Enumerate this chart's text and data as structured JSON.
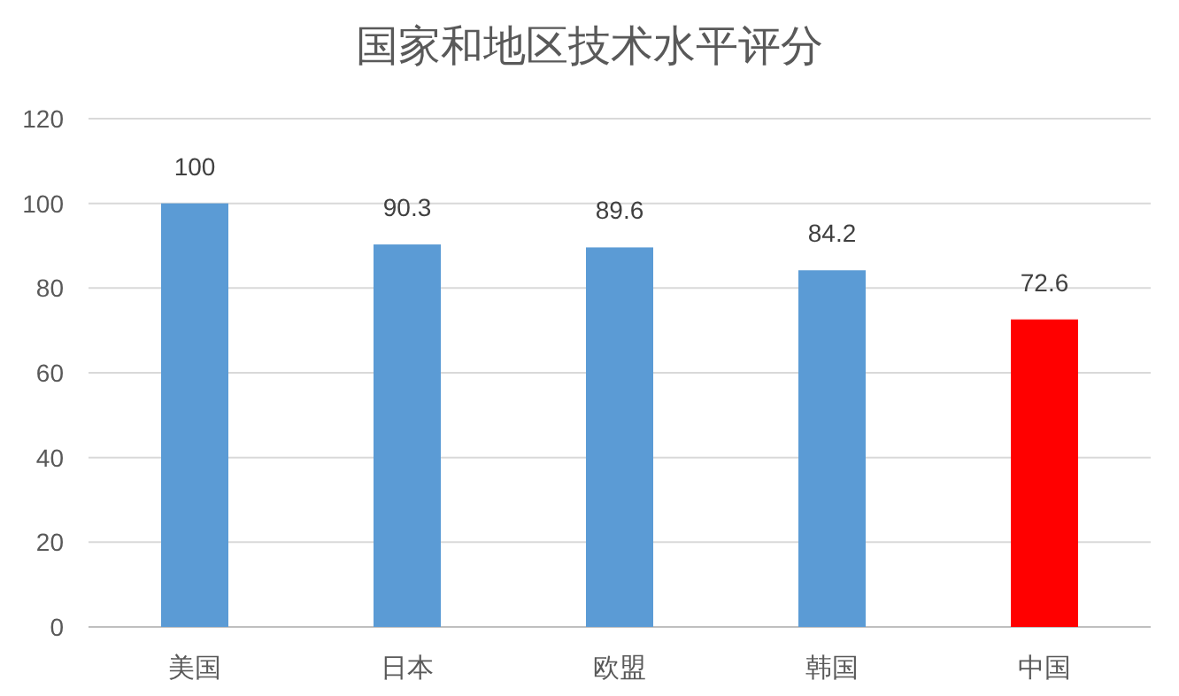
{
  "chart_data": {
    "type": "bar",
    "title": "国家和地区技术水平评分",
    "categories": [
      "美国",
      "日本",
      "欧盟",
      "韩国",
      "中国"
    ],
    "values": [
      100,
      90.3,
      89.6,
      84.2,
      72.6
    ],
    "colors": [
      "#5b9bd5",
      "#5b9bd5",
      "#5b9bd5",
      "#5b9bd5",
      "#ff0000"
    ],
    "ylim": [
      0,
      120
    ],
    "yticks": [
      0,
      20,
      40,
      60,
      80,
      100,
      120
    ],
    "grid": "y",
    "data_labels": true
  }
}
